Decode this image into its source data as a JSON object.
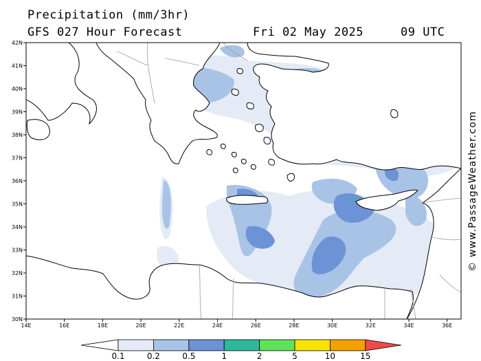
{
  "header": {
    "title": "Precipitation (mm/3hr)",
    "subtitle": "GFS 027 Hour Forecast",
    "date": "Fri 02 May 2025",
    "time": "09 UTC"
  },
  "axes": {
    "lat_labels": [
      "42N",
      "41N",
      "40N",
      "39N",
      "38N",
      "37N",
      "36N",
      "35N",
      "34N",
      "33N",
      "32N",
      "31N",
      "30N"
    ],
    "lon_labels": [
      "14E",
      "16E",
      "18E",
      "20E",
      "22E",
      "24E",
      "26E",
      "28E",
      "30E",
      "32E",
      "34E",
      "36E"
    ]
  },
  "legend": {
    "colors": [
      "#ffffff",
      "#e4ebf6",
      "#a9c3e6",
      "#6b93d6",
      "#2eb99a",
      "#5ee358",
      "#f7e300",
      "#f5a100",
      "#ee4a4a"
    ],
    "labels": [
      "0.1",
      "0.2",
      "0.5",
      "1",
      "2",
      "5",
      "10",
      "15"
    ]
  },
  "map": {
    "land_color": "#ffffff",
    "coast_color": "#000000",
    "border_color": "#9a9a9a"
  },
  "credit": "© www.PassageWeather.com"
}
